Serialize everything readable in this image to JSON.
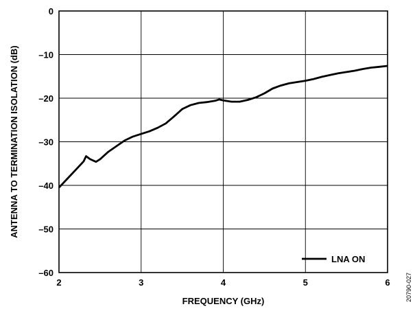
{
  "chart_data": {
    "type": "line",
    "xlabel": "FREQUENCY (GHz)",
    "ylabel": "ANTENNA TO TERMINATION ISOLATION (dB)",
    "xlim": [
      2,
      6
    ],
    "ylim": [
      -60,
      0
    ],
    "x_ticks": [
      "2",
      "3",
      "4",
      "5",
      "6"
    ],
    "y_ticks": [
      "0",
      "–10",
      "–20",
      "–30",
      "–40",
      "–50",
      "–60"
    ],
    "grid": true,
    "legend_position": "bottom-right",
    "series": [
      {
        "name": "LNA ON",
        "color": "#000000",
        "x": [
          2.0,
          2.1,
          2.2,
          2.3,
          2.33,
          2.38,
          2.45,
          2.5,
          2.6,
          2.7,
          2.8,
          2.9,
          3.0,
          3.1,
          3.2,
          3.3,
          3.4,
          3.5,
          3.6,
          3.7,
          3.8,
          3.9,
          3.95,
          4.0,
          4.1,
          4.2,
          4.3,
          4.4,
          4.5,
          4.6,
          4.7,
          4.8,
          4.9,
          5.0,
          5.1,
          5.2,
          5.3,
          5.4,
          5.5,
          5.6,
          5.7,
          5.8,
          5.9,
          6.0
        ],
        "y": [
          -40.5,
          -38.5,
          -36.5,
          -34.5,
          -33.3,
          -34.0,
          -34.6,
          -34.0,
          -32.3,
          -31.0,
          -29.7,
          -28.8,
          -28.2,
          -27.6,
          -26.8,
          -25.8,
          -24.2,
          -22.5,
          -21.6,
          -21.1,
          -20.9,
          -20.6,
          -20.3,
          -20.5,
          -20.8,
          -20.8,
          -20.4,
          -19.8,
          -18.9,
          -17.8,
          -17.1,
          -16.6,
          -16.3,
          -16.0,
          -15.6,
          -15.1,
          -14.7,
          -14.3,
          -14.0,
          -13.7,
          -13.3,
          -13.0,
          -12.8,
          -12.6
        ]
      }
    ]
  },
  "figure_id": "20790-027"
}
